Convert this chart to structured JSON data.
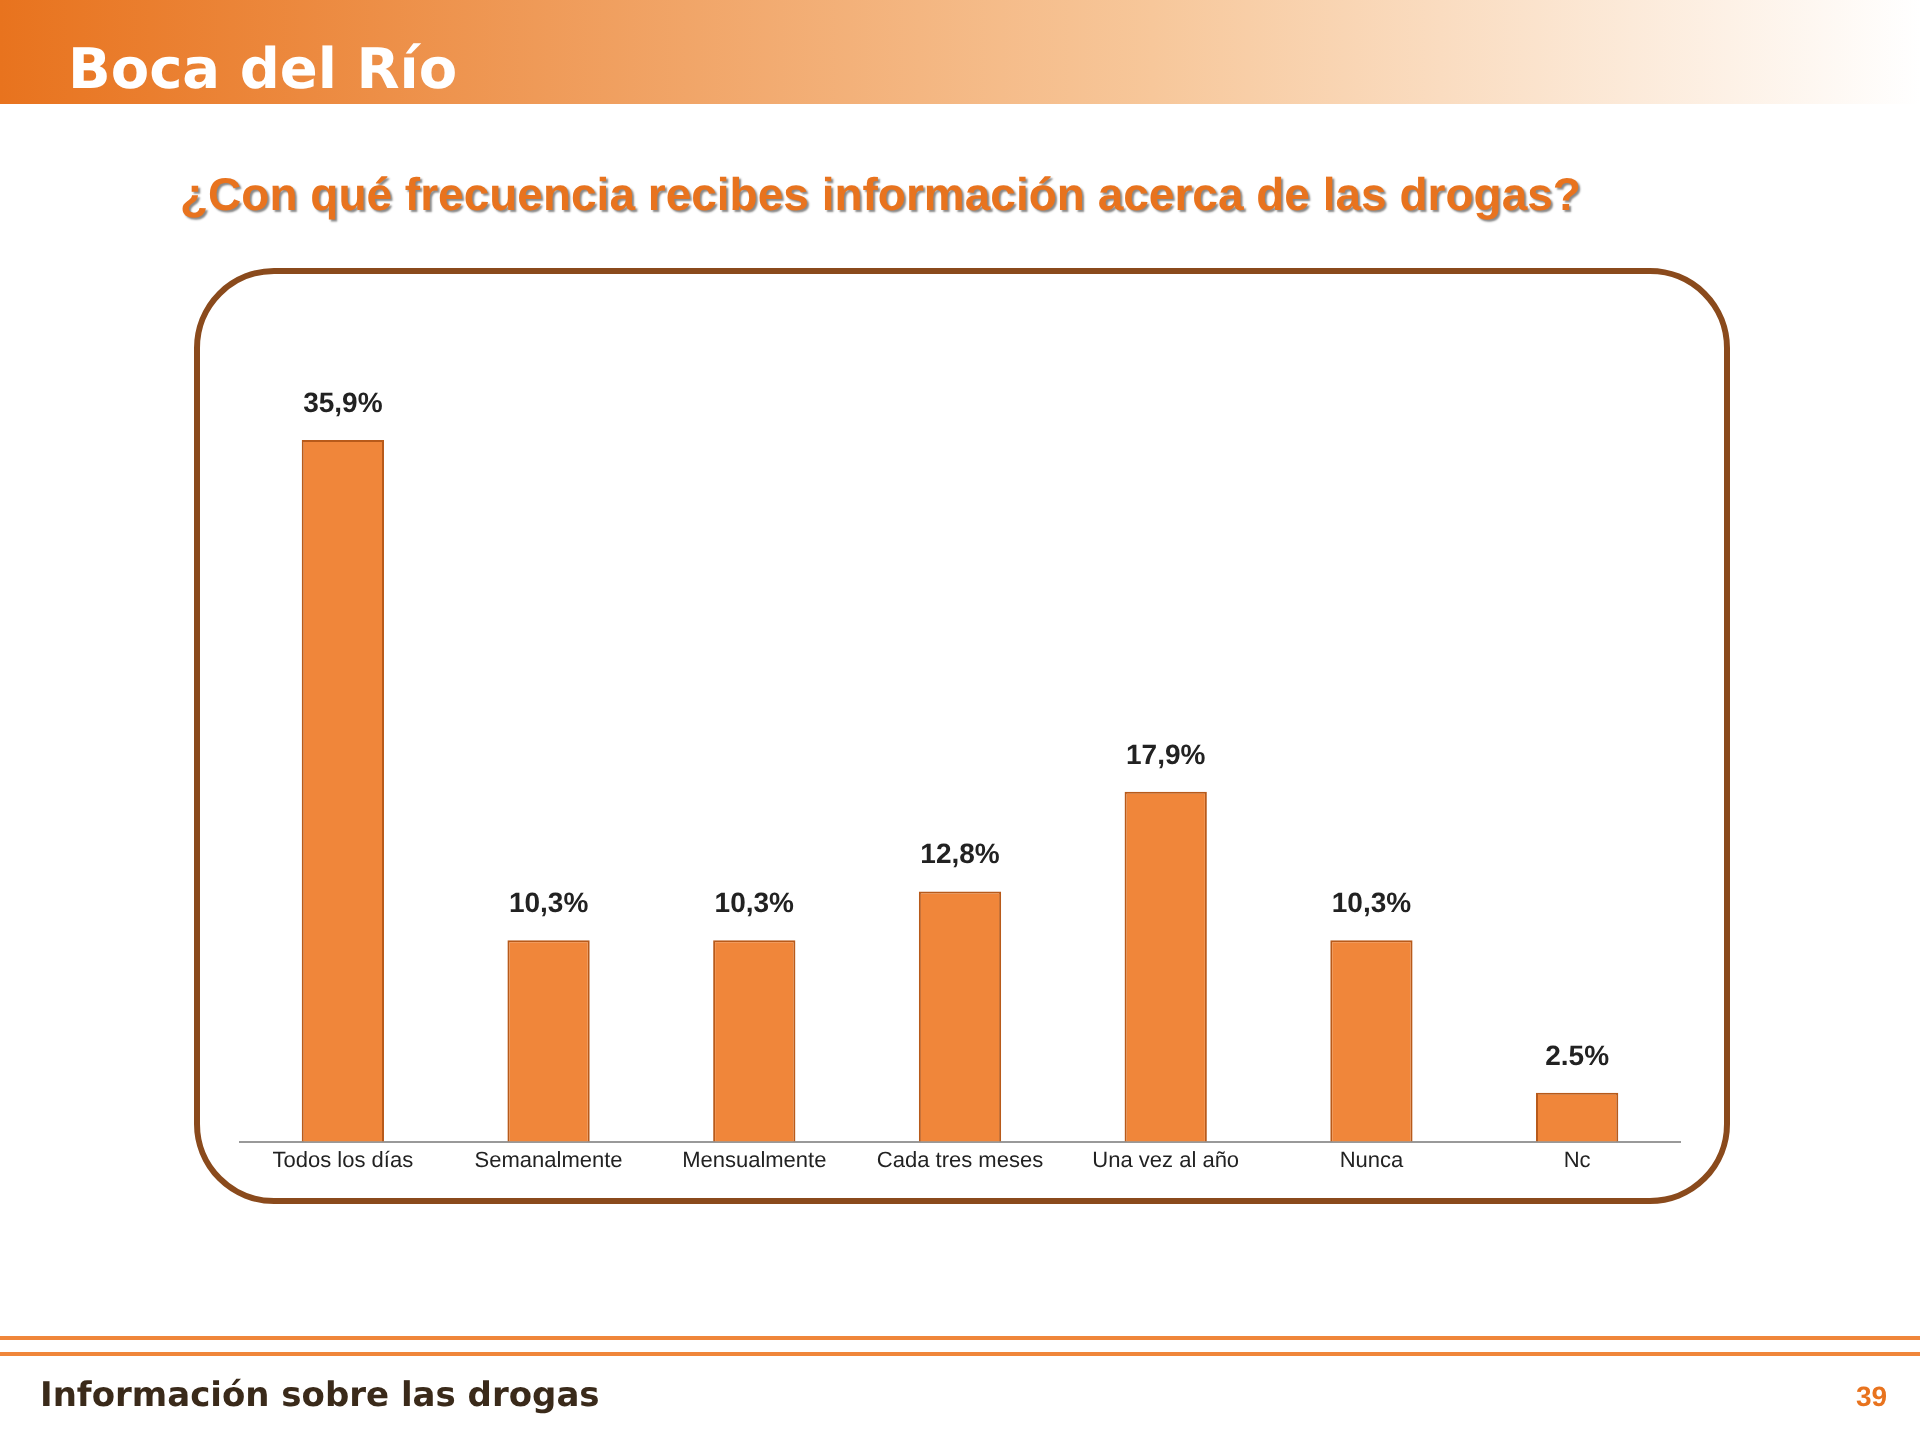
{
  "chart_data": {
    "type": "bar",
    "title": "¿Con qué frecuencia recibes información acerca de las drogas?",
    "categories": [
      "Todos los días",
      "Semanalmente",
      "Mensualmente",
      "Cada tres meses",
      "Una vez al año",
      "Nunca",
      "Nc"
    ],
    "values": [
      35.9,
      10.3,
      10.3,
      12.8,
      17.9,
      10.3,
      2.5
    ],
    "value_labels": [
      "35,9%",
      "10,3%",
      "10,3%",
      "12,8%",
      "17,9%",
      "10,3%",
      "2.5%"
    ],
    "color": "#f0863a",
    "grid": false,
    "legend": false,
    "annotations": [
      "Boca del Río",
      "Información sobre las drogas",
      "39"
    ]
  }
}
